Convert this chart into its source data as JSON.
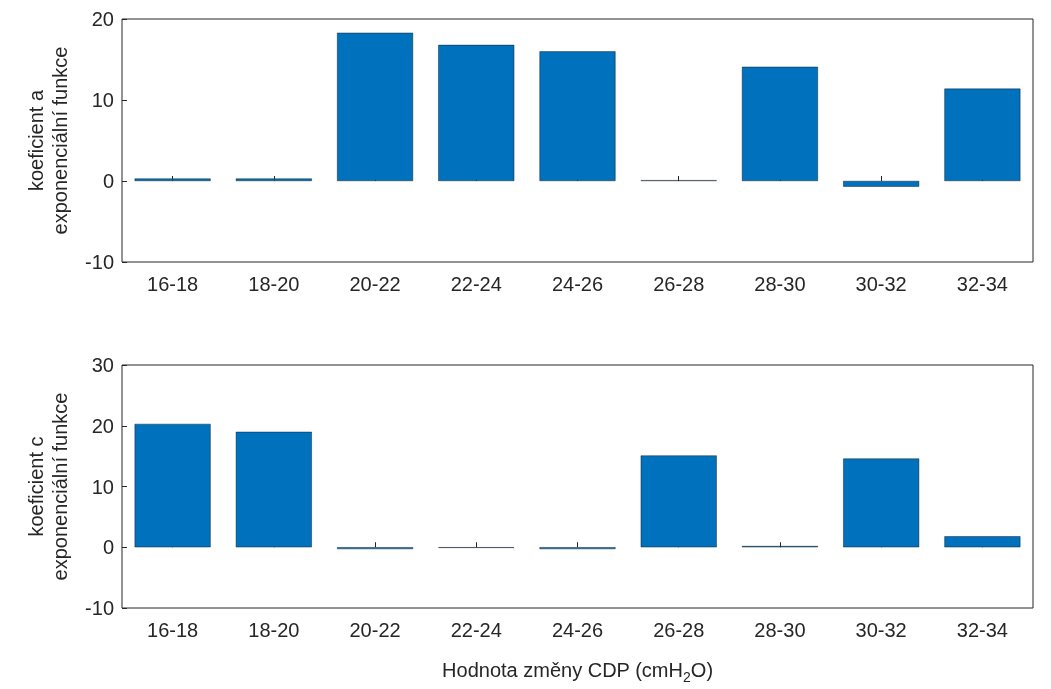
{
  "chart_data": [
    {
      "type": "bar",
      "ylabel": "koeficient a\nexponenciální funkce",
      "categories": [
        "16-18",
        "18-20",
        "20-22",
        "22-24",
        "24-26",
        "26-28",
        "28-30",
        "30-32",
        "32-34"
      ],
      "color": "#0072bd",
      "values": [
        0.3,
        0.3,
        18.3,
        16.8,
        16.0,
        0.1,
        14.1,
        -0.7,
        11.4
      ],
      "ylim": [
        -10,
        20
      ],
      "yticks": [
        -10,
        0,
        10,
        20
      ]
    },
    {
      "type": "bar",
      "ylabel": "koeficient c\nexponenciální funkce",
      "xlabel": "Hodnota změny CDP (cmH$_{2}$O)",
      "categories": [
        "16-18",
        "18-20",
        "20-22",
        "22-24",
        "24-26",
        "26-28",
        "28-30",
        "30-32",
        "32-34"
      ],
      "color": "#0072bd",
      "values": [
        20.3,
        19.0,
        -0.3,
        -0.1,
        -0.3,
        15.1,
        0.2,
        14.6,
        1.8
      ],
      "ylim": [
        -10,
        30
      ],
      "yticks": [
        -10,
        0,
        10,
        20,
        30
      ]
    }
  ]
}
